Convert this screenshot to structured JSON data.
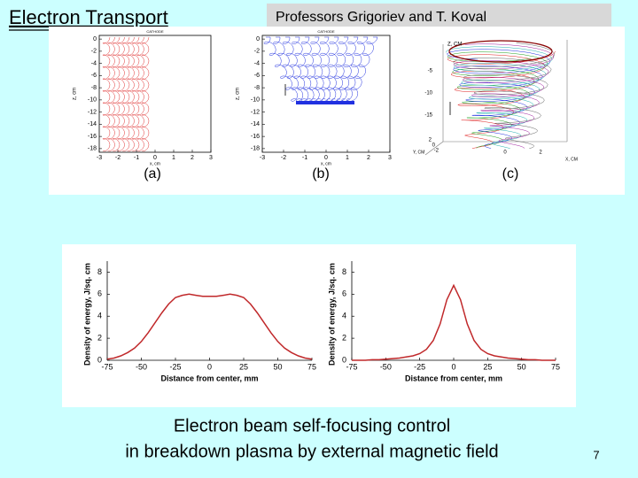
{
  "header": {
    "title": "Electron Transport",
    "authors": "Professors Grigoriev and T. Koval"
  },
  "panels": [
    {
      "label": "(a)",
      "title": "CATHODE",
      "xlabel": "x, cm",
      "ylabel": "z, cm",
      "xlim": [
        -3,
        3
      ],
      "xticks": [
        -3,
        -2,
        -1,
        0,
        1,
        2,
        3
      ],
      "ylim": [
        -18.6,
        0.6
      ],
      "yticks": [
        0,
        -2,
        -4,
        -6,
        -8,
        -10,
        -12,
        -14,
        -16,
        -18
      ]
    },
    {
      "label": "(b)",
      "title": "CATHODE",
      "xlabel": "x, cm",
      "ylabel": "z, cm",
      "xlim": [
        -3,
        3
      ],
      "xticks": [
        -3,
        -2,
        -1,
        0,
        1,
        2,
        3
      ],
      "ylim": [
        -18.6,
        0.6
      ],
      "yticks": [
        0,
        -2,
        -4,
        -6,
        -8,
        -10,
        -12,
        -14,
        -16,
        -18
      ]
    },
    {
      "label": "(c)",
      "xlabel": "X, CM",
      "ylabel": "Y, CM",
      "zlabel": "Z, CM",
      "zticks": [
        -5,
        -10,
        -15
      ],
      "yticks": [
        2,
        0,
        -2
      ],
      "xticks": [
        0,
        2
      ]
    }
  ],
  "chart_data": [
    {
      "type": "line",
      "ylabel": "Density of energy, J/sq. cm",
      "xlabel": "Distance from center, mm",
      "x": [
        -75,
        -70,
        -65,
        -60,
        -55,
        -50,
        -45,
        -40,
        -35,
        -30,
        -25,
        -20,
        -15,
        -10,
        -5,
        0,
        5,
        10,
        15,
        20,
        25,
        30,
        35,
        40,
        45,
        50,
        55,
        60,
        65,
        70,
        75
      ],
      "series": [
        {
          "color": "#c0282a",
          "values": [
            0.1,
            0.2,
            0.4,
            0.7,
            1.1,
            1.7,
            2.5,
            3.4,
            4.3,
            5.1,
            5.7,
            5.9,
            6.0,
            5.9,
            5.8,
            5.8,
            5.8,
            5.9,
            6.0,
            5.9,
            5.7,
            5.1,
            4.3,
            3.4,
            2.5,
            1.7,
            1.1,
            0.7,
            0.4,
            0.2,
            0.1
          ]
        }
      ],
      "xlim": [
        -75,
        75
      ],
      "ylim": [
        0,
        9
      ],
      "xticks": [
        -75,
        -50,
        -25,
        0,
        25,
        50,
        75
      ],
      "yticks": [
        0,
        2,
        4,
        6,
        8
      ]
    },
    {
      "type": "line",
      "ylabel": "Density of energy, J/sq. cm",
      "xlabel": "Distance from center, mm",
      "x": [
        -75,
        -70,
        -65,
        -60,
        -55,
        -50,
        -45,
        -40,
        -35,
        -30,
        -25,
        -20,
        -15,
        -10,
        -5,
        0,
        5,
        10,
        15,
        20,
        25,
        30,
        35,
        40,
        45,
        50,
        55,
        60,
        65,
        70,
        75
      ],
      "series": [
        {
          "color": "#c0282a",
          "values": [
            0,
            0,
            0,
            0.05,
            0.05,
            0.1,
            0.15,
            0.2,
            0.3,
            0.4,
            0.6,
            1.0,
            1.8,
            3.3,
            5.5,
            6.8,
            5.5,
            3.3,
            1.8,
            1.0,
            0.6,
            0.4,
            0.3,
            0.2,
            0.15,
            0.1,
            0.05,
            0.05,
            0,
            0,
            0
          ]
        }
      ],
      "xlim": [
        -75,
        75
      ],
      "ylim": [
        0,
        9
      ],
      "xticks": [
        -75,
        -50,
        -25,
        0,
        25,
        50,
        75
      ],
      "yticks": [
        0,
        2,
        4,
        6,
        8
      ]
    }
  ],
  "caption": [
    "Electron beam self-focusing control",
    "in breakdown plasma by external magnetic field"
  ],
  "page_number": "7"
}
